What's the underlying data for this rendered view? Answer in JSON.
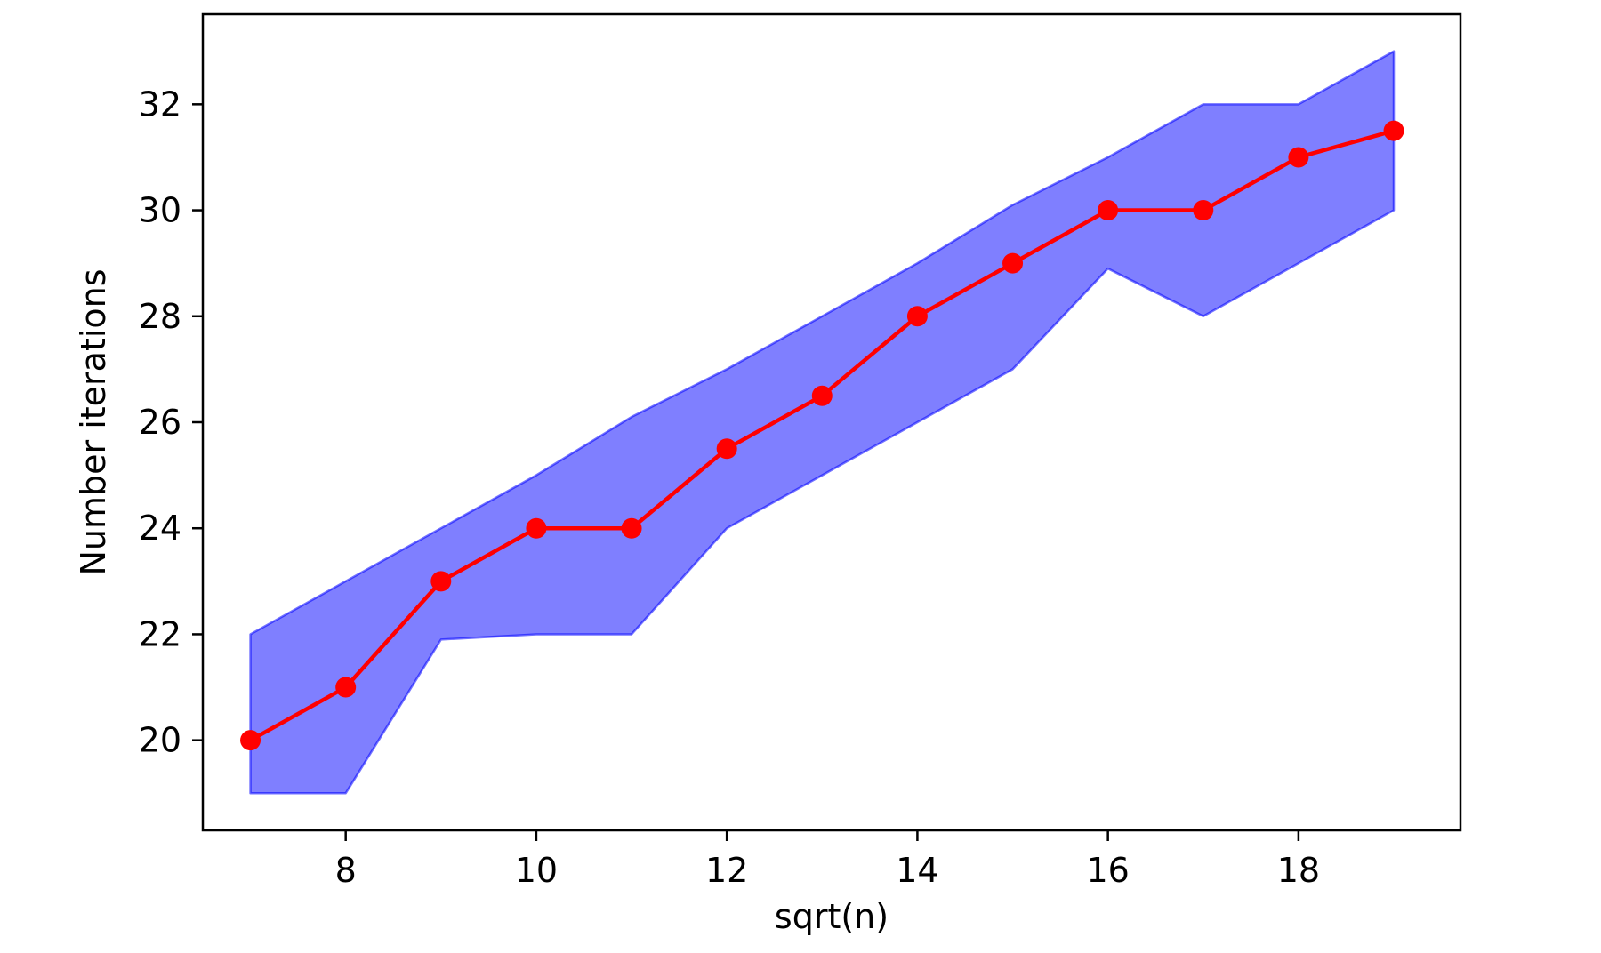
{
  "chart_data": {
    "type": "line",
    "title": "",
    "xlabel": "sqrt(n)",
    "ylabel": "Number iterations",
    "xlim": [
      6.5,
      19.7
    ],
    "ylim": [
      18.3,
      33.7
    ],
    "xticks": [
      8,
      10,
      12,
      14,
      16,
      18
    ],
    "yticks": [
      20,
      22,
      24,
      26,
      28,
      30,
      32
    ],
    "grid": false,
    "legend": "none",
    "x": [
      7,
      8,
      9,
      10,
      11,
      12,
      13,
      14,
      15,
      16,
      17,
      18,
      19
    ],
    "series": [
      {
        "values": [
          20,
          21,
          23,
          24,
          24,
          25.5,
          26.5,
          28,
          29,
          30,
          30,
          31,
          31.5
        ],
        "color": "#ff0000",
        "marker": "circle"
      }
    ],
    "band": {
      "lower": [
        19,
        19,
        21.9,
        22,
        22,
        24,
        25,
        26,
        27,
        28.9,
        28,
        29,
        30
      ],
      "upper": [
        22,
        23,
        24,
        25,
        26.1,
        27,
        28,
        29,
        30.1,
        31,
        32,
        32,
        33
      ],
      "fill_color": "#0000ff",
      "fill_opacity": 0.5
    }
  }
}
